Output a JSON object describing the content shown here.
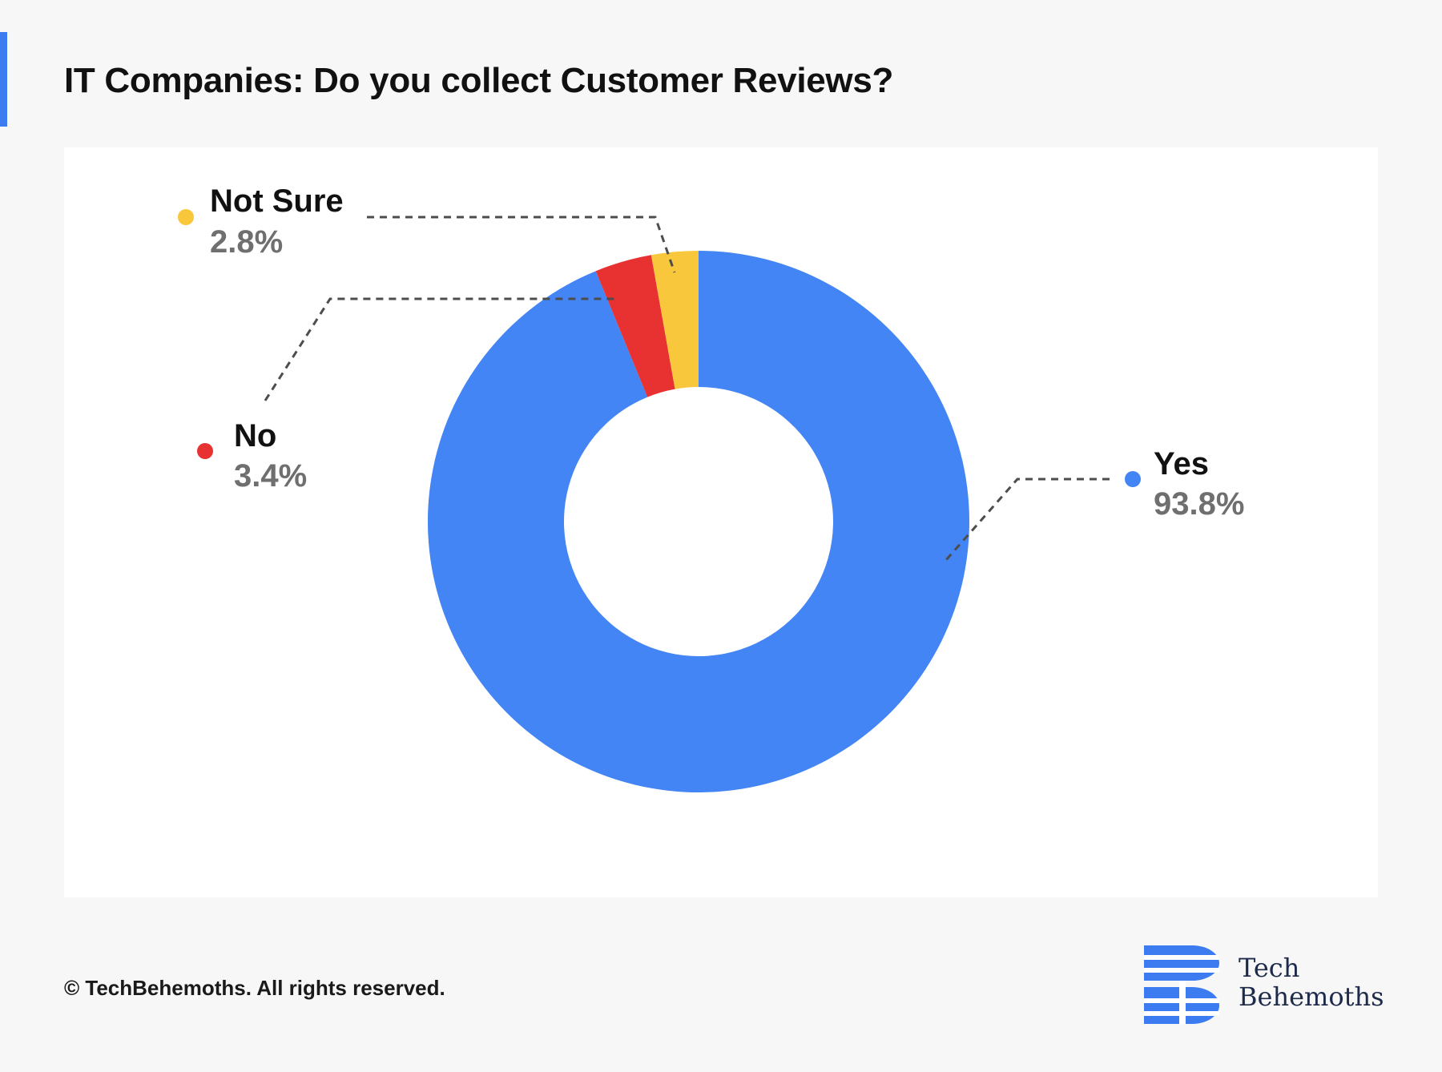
{
  "title": "IT Companies: Do you collect Customer Reviews?",
  "colors": {
    "accent": "#3d7bf0",
    "yes": "#4385f4",
    "no": "#e83131",
    "not_sure": "#f9c73b",
    "leader": "#4d4d4d"
  },
  "chart_data": {
    "type": "pie",
    "donut": true,
    "title": "IT Companies: Do you collect Customer Reviews?",
    "slices": [
      {
        "label": "Yes",
        "value": 93.8,
        "value_label": "93.8%",
        "color": "#4385f4"
      },
      {
        "label": "No",
        "value": 3.4,
        "value_label": "3.4%",
        "color": "#e83131"
      },
      {
        "label": "Not Sure",
        "value": 2.8,
        "value_label": "2.8%",
        "color": "#f9c73b"
      }
    ],
    "legend": "callout labels beside slices"
  },
  "footer": {
    "copyright": "© TechBehemoths. All rights reserved."
  },
  "logo": {
    "line1": "Tech",
    "line2": "Behemoths",
    "icon": "techbehemoths-logo-icon"
  }
}
